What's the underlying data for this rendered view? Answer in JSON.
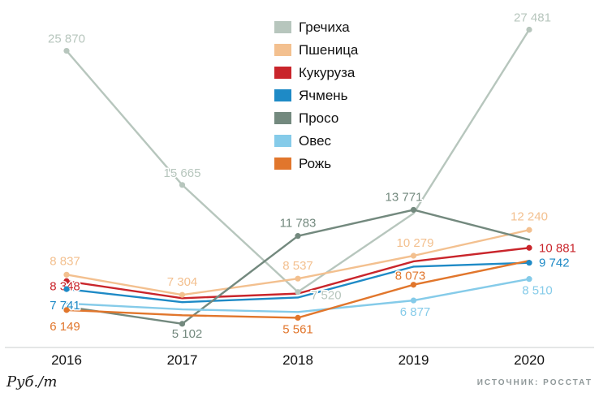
{
  "chart_data": {
    "type": "line",
    "title": "",
    "unit_label": "Руб./т",
    "source": "ИСТОЧНИК: РОССТАТ",
    "categories": [
      "2016",
      "2017",
      "2018",
      "2019",
      "2020"
    ],
    "ylim": [
      3300,
      28500
    ],
    "grid": false,
    "legend_position": "top-center",
    "axis_color": "#c9cdcd",
    "series": [
      {
        "name": "Гречиха",
        "color": "#b7c6bd",
        "values": [
          25870,
          15665,
          7520,
          13500,
          27481
        ],
        "labels": [
          {
            "i": 0,
            "text": "25 870",
            "dx": 0,
            "dy": -10,
            "anchor": "middle"
          },
          {
            "i": 1,
            "text": "15 665",
            "dx": 0,
            "dy": -10,
            "anchor": "middle"
          },
          {
            "i": 2,
            "text": "7 520",
            "dx": 16,
            "dy": 9,
            "anchor": "start"
          },
          {
            "i": 4,
            "text": "27 481",
            "dx": 4,
            "dy": -10,
            "anchor": "middle"
          }
        ]
      },
      {
        "name": "Пшеница",
        "color": "#f3c08f",
        "values": [
          8837,
          7304,
          8537,
          10279,
          12240
        ],
        "labels": [
          {
            "i": 0,
            "text": "8 837",
            "dx": -2,
            "dy": -12,
            "anchor": "middle"
          },
          {
            "i": 1,
            "text": "7 304",
            "dx": 0,
            "dy": -11,
            "anchor": "middle"
          },
          {
            "i": 2,
            "text": "8 537",
            "dx": 0,
            "dy": -11,
            "anchor": "middle"
          },
          {
            "i": 3,
            "text": "10 279",
            "dx": 2,
            "dy": -11,
            "anchor": "middle"
          },
          {
            "i": 4,
            "text": "12 240",
            "dx": 0,
            "dy": -12,
            "anchor": "middle"
          }
        ]
      },
      {
        "name": "Кукуруза",
        "color": "#c9252b",
        "values": [
          8348,
          7050,
          7400,
          9850,
          10881
        ],
        "labels": [
          {
            "i": 0,
            "text": "8 348",
            "dx": -2,
            "dy": 11,
            "anchor": "middle"
          },
          {
            "i": 4,
            "text": "10 881",
            "dx": 12,
            "dy": 5,
            "anchor": "start"
          }
        ]
      },
      {
        "name": "Ячмень",
        "color": "#1e8ac6",
        "values": [
          7741,
          6750,
          7100,
          9450,
          9742
        ],
        "labels": [
          {
            "i": 0,
            "text": "7 741",
            "dx": -2,
            "dy": 25,
            "anchor": "middle"
          },
          {
            "i": 4,
            "text": "9 742",
            "dx": 12,
            "dy": 5,
            "anchor": "start"
          }
        ]
      },
      {
        "name": "Просо",
        "color": "#73897e",
        "values": [
          6400,
          5102,
          11783,
          13771,
          11500
        ],
        "labels": [
          {
            "i": 1,
            "text": "5 102",
            "dx": 6,
            "dy": 17,
            "anchor": "middle"
          },
          {
            "i": 2,
            "text": "11 783",
            "dx": 0,
            "dy": -11,
            "anchor": "middle"
          },
          {
            "i": 3,
            "text": "13 771",
            "dx": -12,
            "dy": -11,
            "anchor": "middle"
          }
        ]
      },
      {
        "name": "Овес",
        "color": "#85cbe9",
        "values": [
          6650,
          6200,
          6000,
          6877,
          8510
        ],
        "labels": [
          {
            "i": 3,
            "text": "6 877",
            "dx": 2,
            "dy": 19,
            "anchor": "middle"
          },
          {
            "i": 4,
            "text": "8 510",
            "dx": 10,
            "dy": 19,
            "anchor": "middle"
          }
        ]
      },
      {
        "name": "Рожь",
        "color": "#e1762c",
        "values": [
          6149,
          5750,
          5561,
          8073,
          9900
        ],
        "labels": [
          {
            "i": 0,
            "text": "6 149",
            "dx": -2,
            "dy": 25,
            "anchor": "middle"
          },
          {
            "i": 2,
            "text": "5 561",
            "dx": 0,
            "dy": 19,
            "anchor": "middle"
          },
          {
            "i": 3,
            "text": "8 073",
            "dx": -4,
            "dy": -6,
            "anchor": "middle"
          }
        ]
      }
    ]
  }
}
